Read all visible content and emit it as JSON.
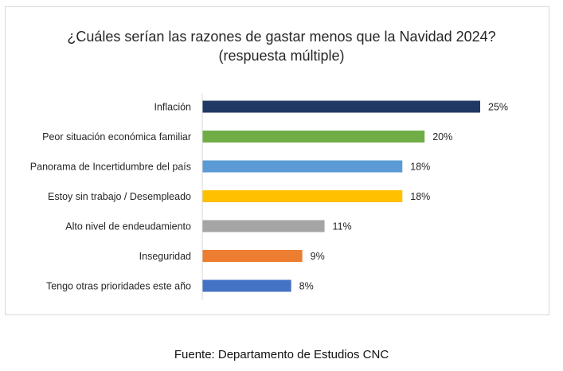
{
  "chart_data": {
    "type": "bar",
    "orientation": "horizontal",
    "title": "¿Cuáles serían las razones de gastar menos que la Navidad 2024?",
    "subtitle": "(respuesta múltiple)",
    "categories": [
      "Inflación",
      "Peor situación económica familiar",
      "Panorama de Incertidumbre del país",
      "Estoy sin trabajo / Desempleado",
      "Alto nivel de endeudamiento",
      "Inseguridad",
      "Tengo otras prioridades este año"
    ],
    "values": [
      25,
      20,
      18,
      18,
      11,
      9,
      8
    ],
    "value_labels": [
      "25%",
      "20%",
      "18%",
      "18%",
      "11%",
      "9%",
      "8%"
    ],
    "bar_colors": [
      "#203864",
      "#70ad47",
      "#5b9bd5",
      "#ffc000",
      "#a5a5a5",
      "#ed7d31",
      "#4472c4"
    ],
    "unit": "%",
    "xlim": [
      0,
      25
    ],
    "grid": false,
    "legend": "none"
  },
  "source": "Fuente: Departamento  de Estudios CNC"
}
